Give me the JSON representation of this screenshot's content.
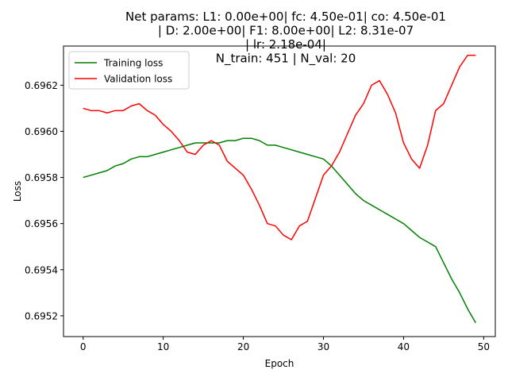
{
  "chart_data": {
    "type": "line",
    "title_lines": [
      "Net params: L1: 0.00e+00| fc: 4.50e-01| co: 4.50e-01",
      "| D: 2.00e+00| F1: 8.00e+00| L2: 8.31e-07",
      "| lr: 2.18e-04|",
      "N_train: 451 | N_val: 20"
    ],
    "xlabel": "Epoch",
    "ylabel": "Loss",
    "xlim": [
      -2.45,
      51.45
    ],
    "ylim": [
      0.69511,
      0.69637
    ],
    "xticks": [
      0,
      10,
      20,
      30,
      40,
      50
    ],
    "xtick_labels": [
      "0",
      "10",
      "20",
      "30",
      "40",
      "50"
    ],
    "yticks": [
      0.6952,
      0.6954,
      0.6956,
      0.6958,
      0.696,
      0.6962
    ],
    "ytick_labels": [
      "0.6952",
      "0.6954",
      "0.6956",
      "0.6958",
      "0.6960",
      "0.6962"
    ],
    "grid": false,
    "legend_position": "upper-left",
    "x": [
      0,
      1,
      2,
      3,
      4,
      5,
      6,
      7,
      8,
      9,
      10,
      11,
      12,
      13,
      14,
      15,
      16,
      17,
      18,
      19,
      20,
      21,
      22,
      23,
      24,
      25,
      26,
      27,
      28,
      29,
      30,
      31,
      32,
      33,
      34,
      35,
      36,
      37,
      38,
      39,
      40,
      41,
      42,
      43,
      44,
      45,
      46,
      47,
      48,
      49
    ],
    "series": [
      {
        "name": "Training loss",
        "color": "#008000",
        "values": [
          0.6958,
          0.69581,
          0.69582,
          0.69583,
          0.69585,
          0.69586,
          0.69588,
          0.69589,
          0.69589,
          0.6959,
          0.69591,
          0.69592,
          0.69593,
          0.69594,
          0.69595,
          0.69595,
          0.69595,
          0.69595,
          0.69596,
          0.69596,
          0.69597,
          0.69597,
          0.69596,
          0.69594,
          0.69594,
          0.69593,
          0.69592,
          0.69591,
          0.6959,
          0.69589,
          0.69588,
          0.69585,
          0.69581,
          0.69577,
          0.69573,
          0.6957,
          0.69568,
          0.69566,
          0.69564,
          0.69562,
          0.6956,
          0.69557,
          0.69554,
          0.69552,
          0.6955,
          0.69543,
          0.69536,
          0.6953,
          0.69523,
          0.69517
        ]
      },
      {
        "name": "Validation loss",
        "color": "#ff0000",
        "values": [
          0.6961,
          0.69609,
          0.69609,
          0.69608,
          0.69609,
          0.69609,
          0.69611,
          0.69612,
          0.69609,
          0.69607,
          0.69603,
          0.696,
          0.69596,
          0.69591,
          0.6959,
          0.69594,
          0.69596,
          0.69594,
          0.69587,
          0.69584,
          0.69581,
          0.69575,
          0.69568,
          0.6956,
          0.69559,
          0.69555,
          0.69553,
          0.69559,
          0.69561,
          0.69571,
          0.69581,
          0.69585,
          0.69591,
          0.69599,
          0.69607,
          0.69612,
          0.6962,
          0.69622,
          0.69616,
          0.69608,
          0.69595,
          0.69588,
          0.69584,
          0.69594,
          0.69609,
          0.69612,
          0.6962,
          0.69628,
          0.69633,
          0.69633
        ]
      }
    ]
  }
}
